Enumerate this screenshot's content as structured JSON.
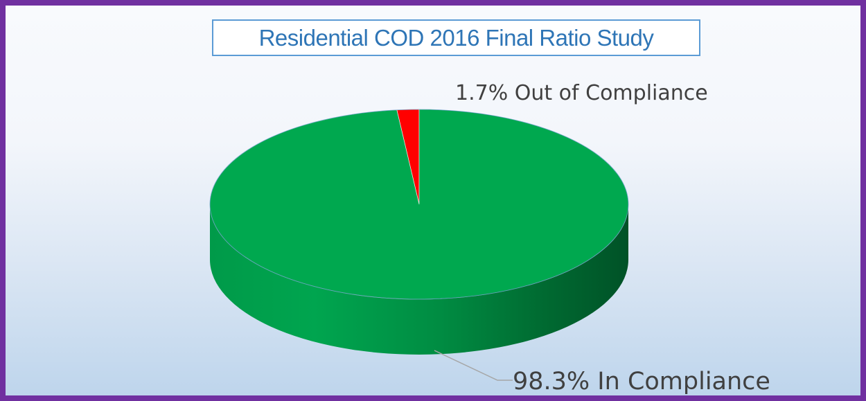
{
  "chart_data": {
    "type": "pie",
    "style": "3d",
    "title": "Residential COD 2016 Final Ratio Study",
    "slices": [
      {
        "label": "Out of Compliance",
        "value": 1.7,
        "color": "#ff0000",
        "data_label": "1.7% Out of Compliance"
      },
      {
        "label": "In Compliance",
        "value": 98.3,
        "color": "#00a84f",
        "data_label": "98.3% In Compliance"
      }
    ],
    "colors": {
      "frame": "#7030a0",
      "title_text": "#2e75b6",
      "title_border": "#5b9bd5",
      "pie_top": "#00a84f",
      "pie_side": "#00853e"
    }
  }
}
